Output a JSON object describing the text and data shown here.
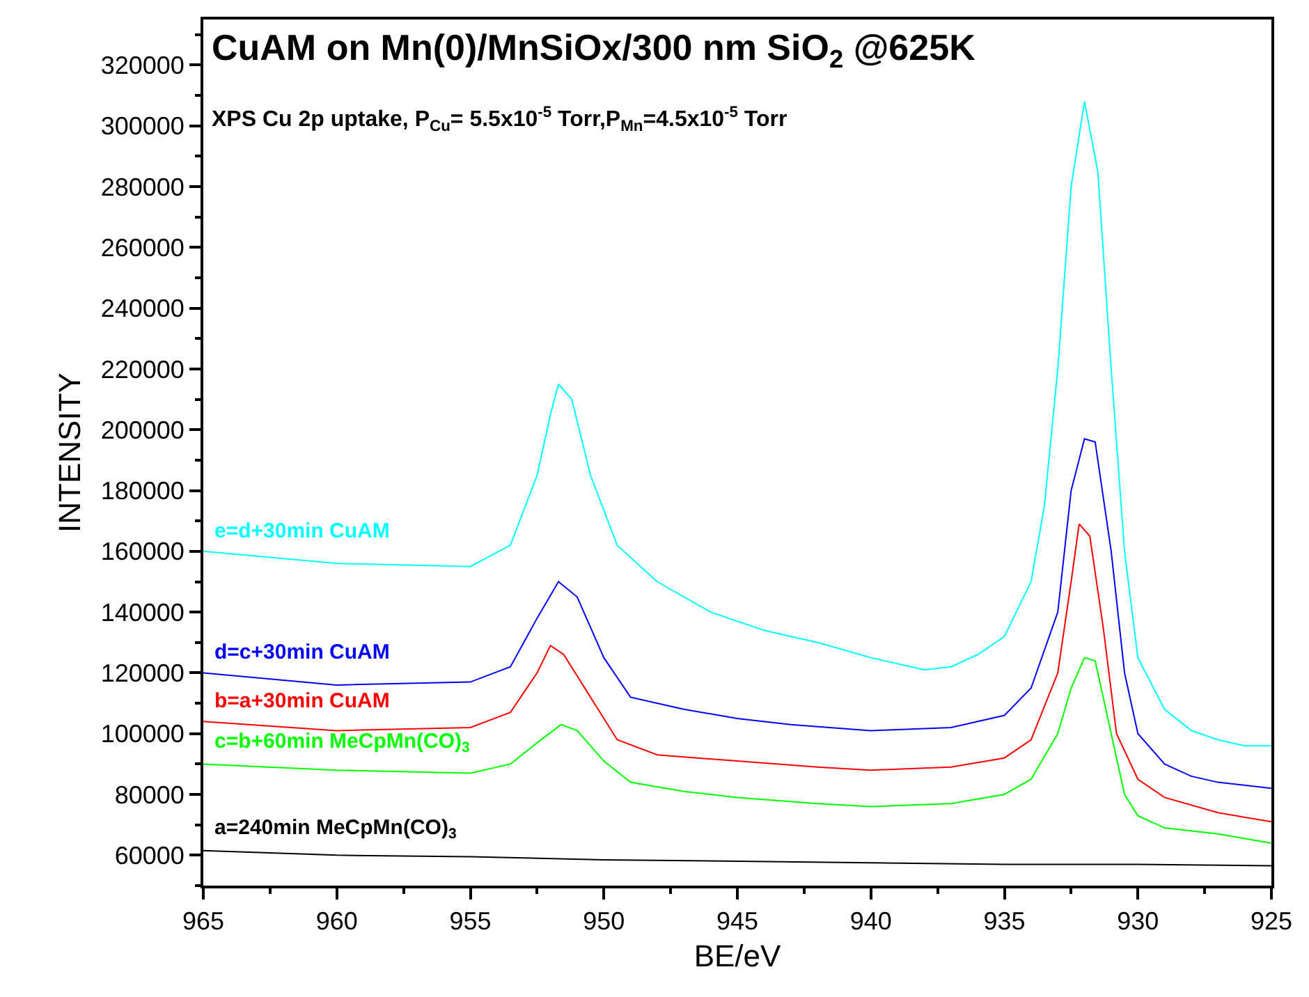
{
  "chart_data": {
    "type": "line",
    "title": "CuAM on Mn(0)/MnSiOx/300 nm SiO$_{2}$ @625K",
    "subtitle": "XPS Cu 2p uptake, P$_{Cu}$= 5.5x10$^{-5}$ Torr,P$_{Mn}$=4.5x10$^{-5}$ Torr",
    "xlabel": "BE/eV",
    "ylabel": "INTENSITY",
    "xlim": [
      965,
      925
    ],
    "xticks": [
      965,
      960,
      955,
      950,
      945,
      940,
      935,
      930,
      925
    ],
    "ylim": [
      50000,
      335000
    ],
    "yticks": [
      60000,
      80000,
      100000,
      120000,
      140000,
      160000,
      180000,
      200000,
      220000,
      240000,
      260000,
      280000,
      300000,
      320000
    ],
    "legend": false,
    "marker": "none",
    "line_style": "solid",
    "series": [
      {
        "name": "e=d+30min CuAM",
        "color": "#00ffff",
        "x": [
          965,
          960,
          955,
          953.5,
          952.5,
          952,
          951.7,
          951.2,
          950.5,
          949.5,
          948,
          946,
          944,
          943.5,
          942,
          940,
          938,
          937,
          936,
          935,
          934,
          933.5,
          933,
          932.5,
          932,
          931.5,
          931,
          930.5,
          930,
          929,
          928,
          927,
          926,
          925
        ],
        "values": [
          160000,
          156000,
          155000,
          162000,
          185000,
          205000,
          215000,
          210000,
          185000,
          162000,
          150000,
          140000,
          134000,
          133000,
          130000,
          125000,
          121000,
          122000,
          126000,
          132000,
          150000,
          175000,
          220000,
          280000,
          308000,
          285000,
          220000,
          160000,
          125000,
          108000,
          101000,
          98000,
          96000,
          96000
        ]
      },
      {
        "name": "d=c+30min CuAM",
        "color": "#0000ff",
        "x": [
          965,
          960,
          955,
          953.5,
          952.5,
          951.7,
          951,
          950,
          949,
          947,
          945,
          943,
          940,
          937,
          935,
          934,
          933,
          932.5,
          932,
          931.6,
          931,
          930.5,
          930,
          929,
          928,
          927,
          925
        ],
        "values": [
          120000,
          116000,
          117000,
          122000,
          138000,
          150000,
          145000,
          125000,
          112000,
          108000,
          105000,
          103000,
          101000,
          102000,
          106000,
          115000,
          140000,
          180000,
          197000,
          196000,
          160000,
          120000,
          100000,
          90000,
          86000,
          84000,
          82000
        ]
      },
      {
        "name": "b=a+30min CuAM",
        "color": "#ff0000",
        "x": [
          965,
          960,
          955,
          953.5,
          952.5,
          952,
          951.5,
          950.5,
          949.5,
          948,
          945,
          942,
          940,
          937,
          935,
          934,
          933,
          932.5,
          932.2,
          931.8,
          931.3,
          930.8,
          930,
          929,
          927,
          925
        ],
        "values": [
          104000,
          101000,
          102000,
          107000,
          120000,
          129000,
          126000,
          112000,
          98000,
          93000,
          91000,
          89000,
          88000,
          89000,
          92000,
          98000,
          120000,
          150000,
          169000,
          165000,
          135000,
          100000,
          85000,
          79000,
          74000,
          71000
        ]
      },
      {
        "name": "c=b+60min MeCpMn(CO)$_{3}$",
        "color": "#00ff00",
        "x": [
          965,
          960,
          955,
          953.5,
          952.5,
          951.6,
          951,
          950,
          949,
          947,
          945,
          942,
          940,
          937,
          935,
          934,
          933,
          932.5,
          932,
          931.6,
          931,
          930.5,
          930,
          929,
          927,
          925
        ],
        "values": [
          90000,
          88000,
          87000,
          90000,
          97000,
          103000,
          101000,
          91000,
          84000,
          81000,
          79000,
          77000,
          76000,
          77000,
          80000,
          85000,
          100000,
          115000,
          125000,
          124000,
          100000,
          80000,
          73000,
          69000,
          67000,
          64000
        ]
      },
      {
        "name": "a=240min MeCpMn(CO)$_{3}$",
        "color": "#000000",
        "x": [
          965,
          960,
          955,
          950,
          945,
          940,
          935,
          930,
          925
        ],
        "values": [
          61500,
          60000,
          59500,
          58500,
          58000,
          57500,
          57000,
          57000,
          56500
        ]
      }
    ]
  }
}
